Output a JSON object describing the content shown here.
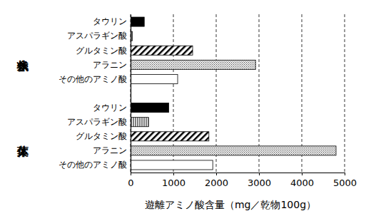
{
  "chart_data": {
    "type": "bar",
    "orientation": "horizontal",
    "categories": [
      "タウリン",
      "アスパラギン酸",
      "グルタミン酸",
      "アラニン",
      "その他のアミノ酸"
    ],
    "series": [
      {
        "name": "糸状体",
        "values": [
          320,
          40,
          1450,
          2920,
          1100
        ]
      },
      {
        "name": "葉体",
        "values": [
          890,
          420,
          1830,
          4800,
          1920
        ]
      }
    ],
    "xlabel": "遊離アミノ酸含量（mg／乾物100g）",
    "xlim": [
      0,
      5000
    ],
    "xticks": [
      0,
      1000,
      2000,
      3000,
      4000,
      5000
    ],
    "grid": true
  }
}
